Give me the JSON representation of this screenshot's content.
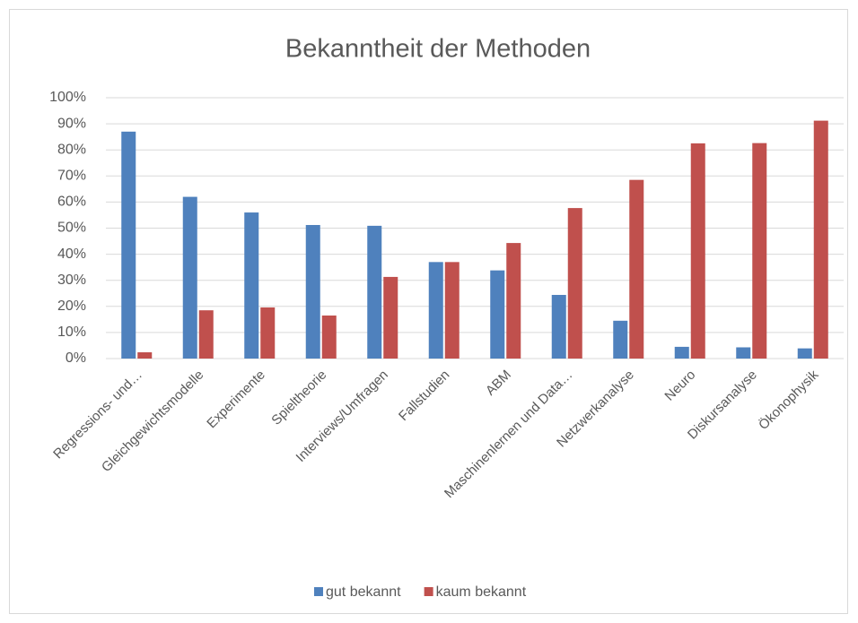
{
  "chart_data": {
    "type": "bar",
    "title": "Bekanntheit der Methoden",
    "categories": [
      "Regressions- und…",
      "Gleichgewichtsmodelle",
      "Experimente",
      "Spieltheorie",
      "Interviews/Umfragen",
      "Fallstudien",
      "ABM",
      "Maschinenlernen und Data…",
      "Netzwerkanalyse",
      "Neuro",
      "Diskursanalyse",
      "Ökonophysik"
    ],
    "series": [
      {
        "name": "gut bekannt",
        "color": "#4f81bd",
        "values": [
          87,
          62,
          56,
          51.2,
          50.9,
          37,
          33.8,
          24.4,
          14.5,
          4.5,
          4.3,
          3.9
        ]
      },
      {
        "name": "kaum bekannt",
        "color": "#c0504d",
        "values": [
          2.4,
          18.5,
          19.6,
          16.5,
          31.3,
          37,
          44.3,
          57.7,
          68.5,
          82.5,
          82.6,
          91.2
        ]
      }
    ],
    "ylim": [
      0,
      100
    ],
    "yticks": [
      {
        "value": 0,
        "label": "0%"
      },
      {
        "value": 10,
        "label": "10%"
      },
      {
        "value": 20,
        "label": "20%"
      },
      {
        "value": 30,
        "label": "30%"
      },
      {
        "value": 40,
        "label": "40%"
      },
      {
        "value": 50,
        "label": "50%"
      },
      {
        "value": 60,
        "label": "60%"
      },
      {
        "value": 70,
        "label": "70%"
      },
      {
        "value": 80,
        "label": "80%"
      },
      {
        "value": 90,
        "label": "90%"
      },
      {
        "value": 100,
        "label": "100%"
      }
    ],
    "grid": true,
    "legend": "bottom"
  }
}
